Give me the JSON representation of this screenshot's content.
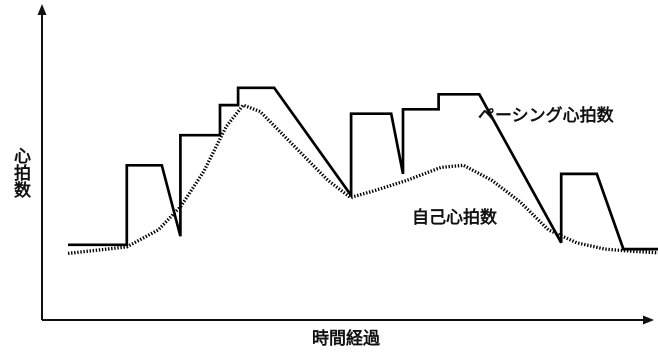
{
  "chart_data": {
    "type": "line",
    "xlabel": "時間経過",
    "ylabel": "心拍数",
    "grid": false,
    "legend": "none",
    "series": [
      {
        "name": "ペーシング心拍数",
        "style": "solid",
        "color": "#000000",
        "points": [
          [
            0,
            8
          ],
          [
            10.4,
            8
          ],
          [
            10.4,
            45
          ],
          [
            16.6,
            45
          ],
          [
            19.9,
            12
          ],
          [
            19.9,
            59
          ],
          [
            26.9,
            59
          ],
          [
            26.9,
            73
          ],
          [
            30.1,
            73
          ],
          [
            30.1,
            81
          ],
          [
            36.5,
            81
          ],
          [
            50.1,
            31
          ],
          [
            50.1,
            69
          ],
          [
            57.2,
            69
          ],
          [
            59.3,
            41
          ],
          [
            59.3,
            71
          ],
          [
            65.6,
            71
          ],
          [
            65.6,
            78
          ],
          [
            72.8,
            78
          ],
          [
            87.3,
            9
          ],
          [
            87.3,
            41
          ],
          [
            93.6,
            41
          ],
          [
            98.3,
            6
          ],
          [
            106.3,
            6
          ]
        ]
      },
      {
        "name": "自己心拍数",
        "style": "dotted",
        "color": "#000000",
        "points": [
          [
            0,
            4
          ],
          [
            10.4,
            7
          ],
          [
            16,
            15
          ],
          [
            20,
            26
          ],
          [
            24,
            42
          ],
          [
            28,
            63
          ],
          [
            31,
            73
          ],
          [
            34,
            70
          ],
          [
            40,
            54
          ],
          [
            46,
            38
          ],
          [
            50,
            30
          ],
          [
            54,
            33
          ],
          [
            60,
            38
          ],
          [
            66,
            44
          ],
          [
            70,
            45
          ],
          [
            75,
            38
          ],
          [
            80,
            28
          ],
          [
            85,
            15
          ],
          [
            90,
            9
          ],
          [
            95,
            6
          ],
          [
            100,
            5
          ],
          [
            106.3,
            4
          ]
        ]
      }
    ],
    "annotations": [
      "ペーシング心拍数",
      "自己心拍数"
    ]
  }
}
